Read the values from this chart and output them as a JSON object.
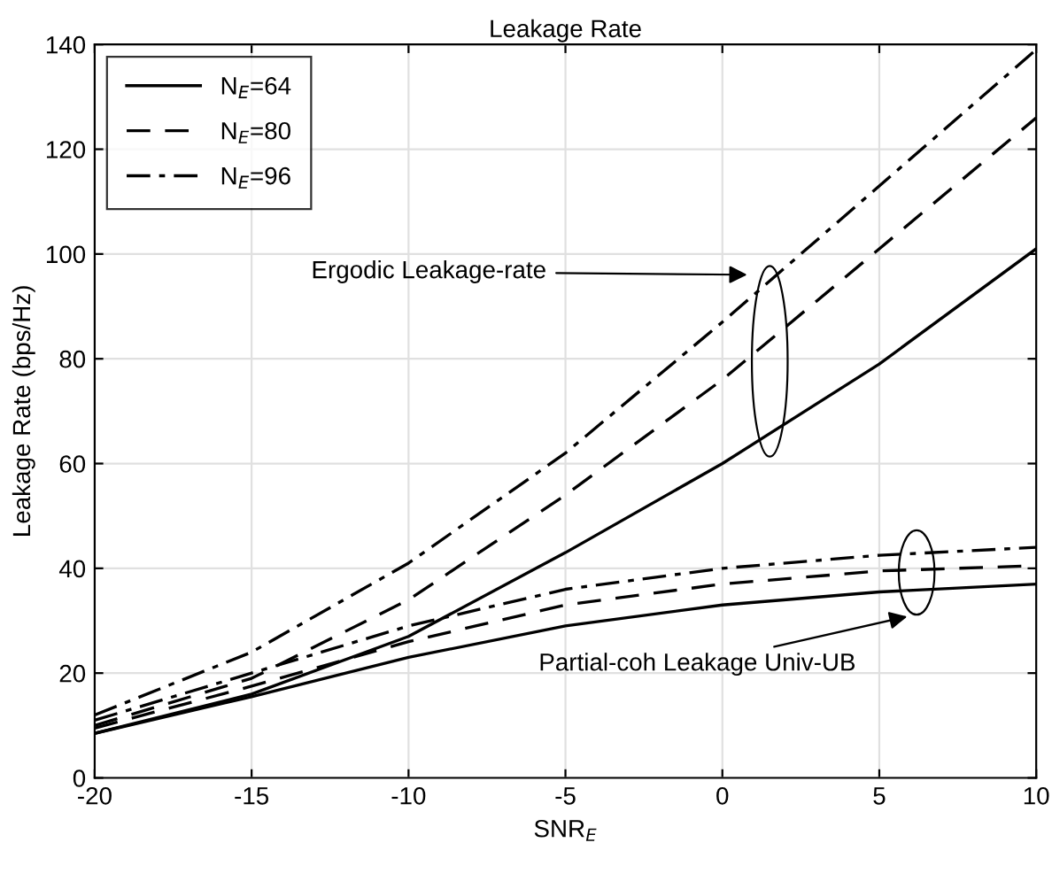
{
  "chart_data": {
    "type": "line",
    "title": "Leakage Rate",
    "xlabel": "SNR$_{E}$",
    "ylabel": "Leakage Rate (bps/Hz)",
    "x": [
      -20,
      -15,
      -10,
      -5,
      0,
      5,
      10
    ],
    "series": [
      {
        "name": "N$_{E}$=64",
        "color": "#000000",
        "line_style": "solid",
        "values": [
          8.5,
          16,
          27,
          43,
          60,
          79,
          101
        ]
      },
      {
        "name": "N$_{E}$=80",
        "color": "#000000",
        "line_style": "dashed",
        "values": [
          10,
          19,
          34,
          54,
          76,
          101,
          126
        ]
      },
      {
        "name": "N$_{E}$=96",
        "color": "#000000",
        "line_style": "dashdot",
        "values": [
          12,
          24,
          41,
          62,
          87,
          113,
          139
        ]
      },
      {
        "color": "#000000",
        "line_style": "solid",
        "values": [
          8.5,
          15.5,
          23,
          29,
          33,
          35.5,
          37
        ]
      },
      {
        "color": "#000000",
        "line_style": "dashed",
        "values": [
          9.5,
          17.5,
          26,
          33,
          37,
          39.5,
          40.5
        ]
      },
      {
        "color": "#000000",
        "line_style": "dashdot",
        "values": [
          11,
          20,
          29,
          36,
          40,
          42.5,
          44
        ]
      }
    ],
    "xlim": [
      -20,
      10
    ],
    "xticks": [
      -20,
      -15,
      -10,
      -5,
      0,
      5,
      10
    ],
    "ylim": [
      0,
      140
    ],
    "yticks": [
      0,
      20,
      40,
      60,
      80,
      100,
      120,
      140
    ],
    "grid": true,
    "legend": "top left",
    "marker": "none",
    "annotations": [
      "Ergodic Leakage-rate",
      "Partial-coh Leakage Univ-UB"
    ]
  }
}
